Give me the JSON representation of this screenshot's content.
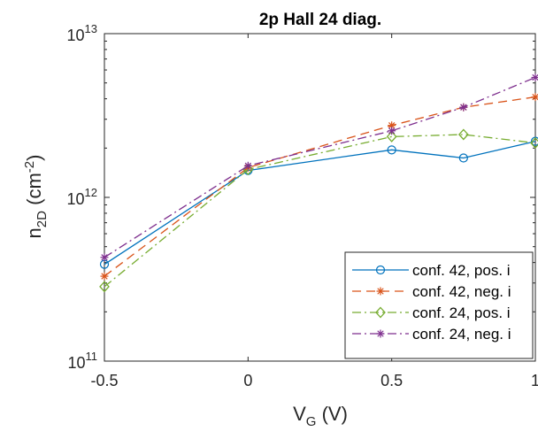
{
  "chart_data": {
    "type": "line",
    "title": "2p Hall 24 diag.",
    "xlabel": {
      "main": "V",
      "sub": "G",
      "rest": " (V)"
    },
    "ylabel": {
      "main": "n",
      "sub": "2D",
      "mid": " (cm",
      "sup": "-2",
      "end": ")"
    },
    "y_scale": "log",
    "xlim": [
      -0.5,
      1
    ],
    "ylim": [
      100000000000.0,
      10000000000000.0
    ],
    "grid": false,
    "legend_position": "bottom-right",
    "x_ticks": [
      "-0.5",
      "0",
      "0.5",
      "1"
    ],
    "x_tick_values": [
      -0.5,
      0,
      0.5,
      1
    ],
    "y_ticks": [
      {
        "base": "10",
        "exp": "11",
        "value": 100000000000.0
      },
      {
        "base": "10",
        "exp": "12",
        "value": 1000000000000.0
      },
      {
        "base": "10",
        "exp": "13",
        "value": 10000000000000.0
      }
    ],
    "x": [
      -0.5,
      0,
      0.5,
      0.75,
      1
    ],
    "series": [
      {
        "name": "conf. 42, pos. i",
        "color": "#0072BD",
        "dash": "",
        "marker": "circle",
        "values": [
          390000000000.0,
          1460000000000.0,
          1950000000000.0,
          1740000000000.0,
          2200000000000.0
        ]
      },
      {
        "name": "conf. 42, neg. i",
        "color": "#D95319",
        "dash": "10,6",
        "marker": "asterisk",
        "values": [
          330000000000.0,
          1520000000000.0,
          2750000000000.0,
          3550000000000.0,
          4100000000000.0
        ]
      },
      {
        "name": "conf. 24, pos. i",
        "color": "#77AC30",
        "dash": "10,4,2,4",
        "marker": "diamond",
        "values": [
          285000000000.0,
          1480000000000.0,
          2350000000000.0,
          2420000000000.0,
          2150000000000.0
        ]
      },
      {
        "name": "conf. 24, neg. i",
        "color": "#7E2F8E",
        "dash": "10,4,2,4",
        "marker": "asterisk",
        "values": [
          430000000000.0,
          1560000000000.0,
          2550000000000.0,
          3550000000000.0,
          5400000000000.0
        ]
      }
    ]
  }
}
